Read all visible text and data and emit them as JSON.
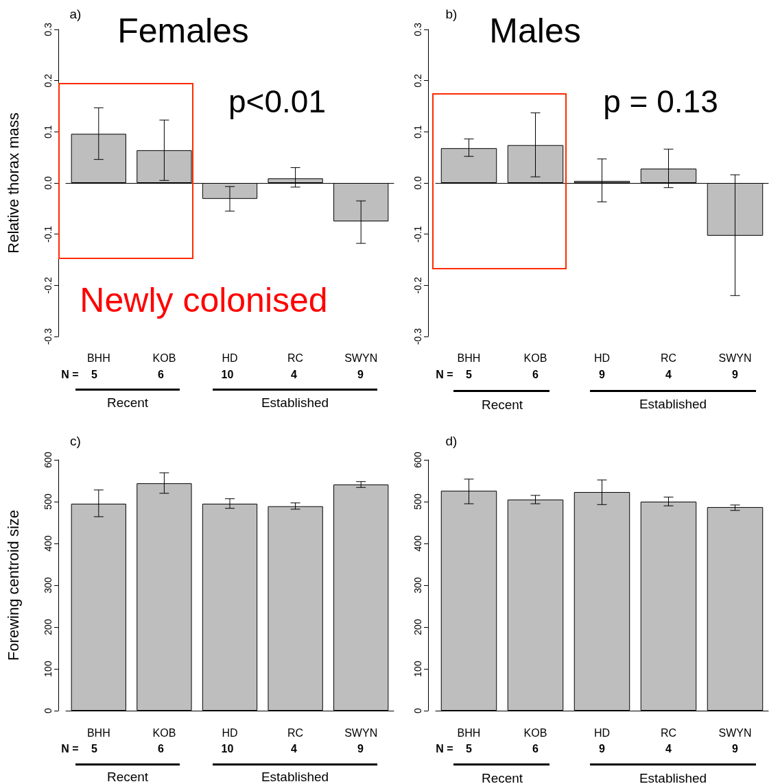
{
  "chart_data": [
    {
      "type": "bar",
      "ylabel": "Relative thorax mass",
      "categories": [
        "BHH",
        "KOB",
        "HD",
        "RC",
        "SWYN"
      ],
      "values": [
        0.096,
        0.064,
        -0.031,
        0.009,
        -0.075
      ],
      "color": "#bebebe",
      "errors": [
        [
          0.046,
          0.147
        ],
        [
          0.005,
          0.123
        ],
        [
          -0.055,
          -0.007
        ],
        [
          -0.008,
          0.03
        ],
        [
          -0.118,
          -0.035
        ]
      ],
      "ylim": [
        -0.3,
        0.3
      ],
      "yticks": [
        {
          "value": -0.3,
          "label": "-0.3"
        },
        {
          "value": -0.2,
          "label": "-0.2"
        },
        {
          "value": -0.1,
          "label": "-0.1"
        },
        {
          "value": 0,
          "label": "0.0"
        },
        {
          "value": 0.1,
          "label": "0.1"
        },
        {
          "value": 0.2,
          "label": "0.2"
        },
        {
          "value": 0.3,
          "label": "0.3"
        }
      ],
      "annotations": [
        "a)",
        "Females",
        "p<0.01",
        "Newly colonised",
        "N =",
        "5",
        "6",
        "10",
        "4",
        "9",
        "Recent",
        "Established"
      ]
    },
    {
      "type": "bar",
      "categories": [
        "BHH",
        "KOB",
        "HD",
        "RC",
        "SWYN"
      ],
      "values": [
        0.068,
        0.074,
        0.004,
        0.028,
        -0.103
      ],
      "color": "#bebebe",
      "errors": [
        [
          0.052,
          0.086
        ],
        [
          0.012,
          0.137
        ],
        [
          -0.037,
          0.047
        ],
        [
          -0.009,
          0.066
        ],
        [
          -0.22,
          0.016
        ]
      ],
      "ylim": [
        -0.3,
        0.3
      ],
      "yticks": [
        {
          "value": -0.3,
          "label": "-0.3"
        },
        {
          "value": -0.2,
          "label": "-0.2"
        },
        {
          "value": -0.1,
          "label": "-0.1"
        },
        {
          "value": 0,
          "label": "0.0"
        },
        {
          "value": 0.1,
          "label": "0.1"
        },
        {
          "value": 0.2,
          "label": "0.2"
        },
        {
          "value": 0.3,
          "label": "0.3"
        }
      ],
      "annotations": [
        "b)",
        "Males",
        "p = 0.13",
        "N =",
        "5",
        "6",
        "9",
        "4",
        "9",
        "Recent",
        "Established"
      ]
    },
    {
      "type": "bar",
      "ylabel": "Forewing centroid size",
      "categories": [
        "BHH",
        "KOB",
        "HD",
        "RC",
        "SWYN"
      ],
      "values": [
        495,
        544,
        495,
        489,
        541
      ],
      "color": "#bebebe",
      "errors": [
        [
          464,
          528
        ],
        [
          520,
          569
        ],
        [
          484,
          507
        ],
        [
          482,
          497
        ],
        [
          534,
          548
        ]
      ],
      "ylim": [
        0,
        600
      ],
      "yticks": [
        0,
        100,
        200,
        300,
        400,
        500,
        600
      ],
      "annotations": [
        "c)",
        "N =",
        "5",
        "6",
        "10",
        "4",
        "9",
        "Recent",
        "Established"
      ]
    },
    {
      "type": "bar",
      "categories": [
        "BHH",
        "KOB",
        "HD",
        "RC",
        "SWYN"
      ],
      "values": [
        526,
        505,
        523,
        500,
        487
      ],
      "color": "#bebebe",
      "errors": [
        [
          495,
          554
        ],
        [
          495,
          515
        ],
        [
          493,
          552
        ],
        [
          490,
          511
        ],
        [
          479,
          492
        ]
      ],
      "ylim": [
        0,
        600
      ],
      "yticks": [
        0,
        100,
        200,
        300,
        400,
        500,
        600
      ],
      "annotations": [
        "d)",
        "N =",
        "5",
        "6",
        "9",
        "4",
        "9",
        "Recent",
        "Established"
      ]
    }
  ]
}
